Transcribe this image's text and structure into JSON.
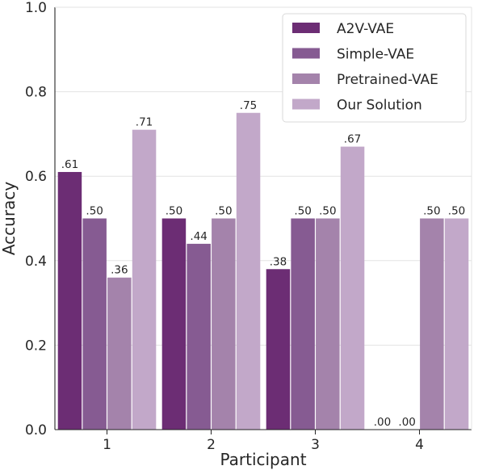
{
  "chart_data": {
    "type": "bar",
    "title": "",
    "xlabel": "Participant",
    "ylabel": "Accuracy",
    "categories": [
      "1",
      "2",
      "3",
      "4"
    ],
    "ylim": [
      0,
      1.0
    ],
    "yticks": [
      0.0,
      0.2,
      0.4,
      0.6,
      0.8,
      1.0
    ],
    "ytick_labels": [
      "0.0",
      "0.2",
      "0.4",
      "0.6",
      "0.8",
      "1.0"
    ],
    "grid": "horizontal",
    "legend_position": "top-right",
    "series": [
      {
        "name": "A2V-VAE",
        "color": "#6c2d74",
        "values": [
          0.61,
          0.5,
          0.38,
          0.0
        ],
        "labels": [
          ".61",
          ".50",
          ".38",
          ".00"
        ]
      },
      {
        "name": "Simple-VAE",
        "color": "#865b92",
        "values": [
          0.5,
          0.44,
          0.5,
          0.0
        ],
        "labels": [
          ".50",
          ".44",
          ".50",
          ".00"
        ]
      },
      {
        "name": "Pretrained-VAE",
        "color": "#a483ab",
        "values": [
          0.36,
          0.5,
          0.5,
          0.5
        ],
        "labels": [
          ".36",
          ".50",
          ".50",
          ".50"
        ]
      },
      {
        "name": "Our Solution",
        "color": "#c2a8c9",
        "values": [
          0.71,
          0.75,
          0.67,
          0.5
        ],
        "labels": [
          ".71",
          ".75",
          ".67",
          ".50"
        ]
      }
    ]
  }
}
